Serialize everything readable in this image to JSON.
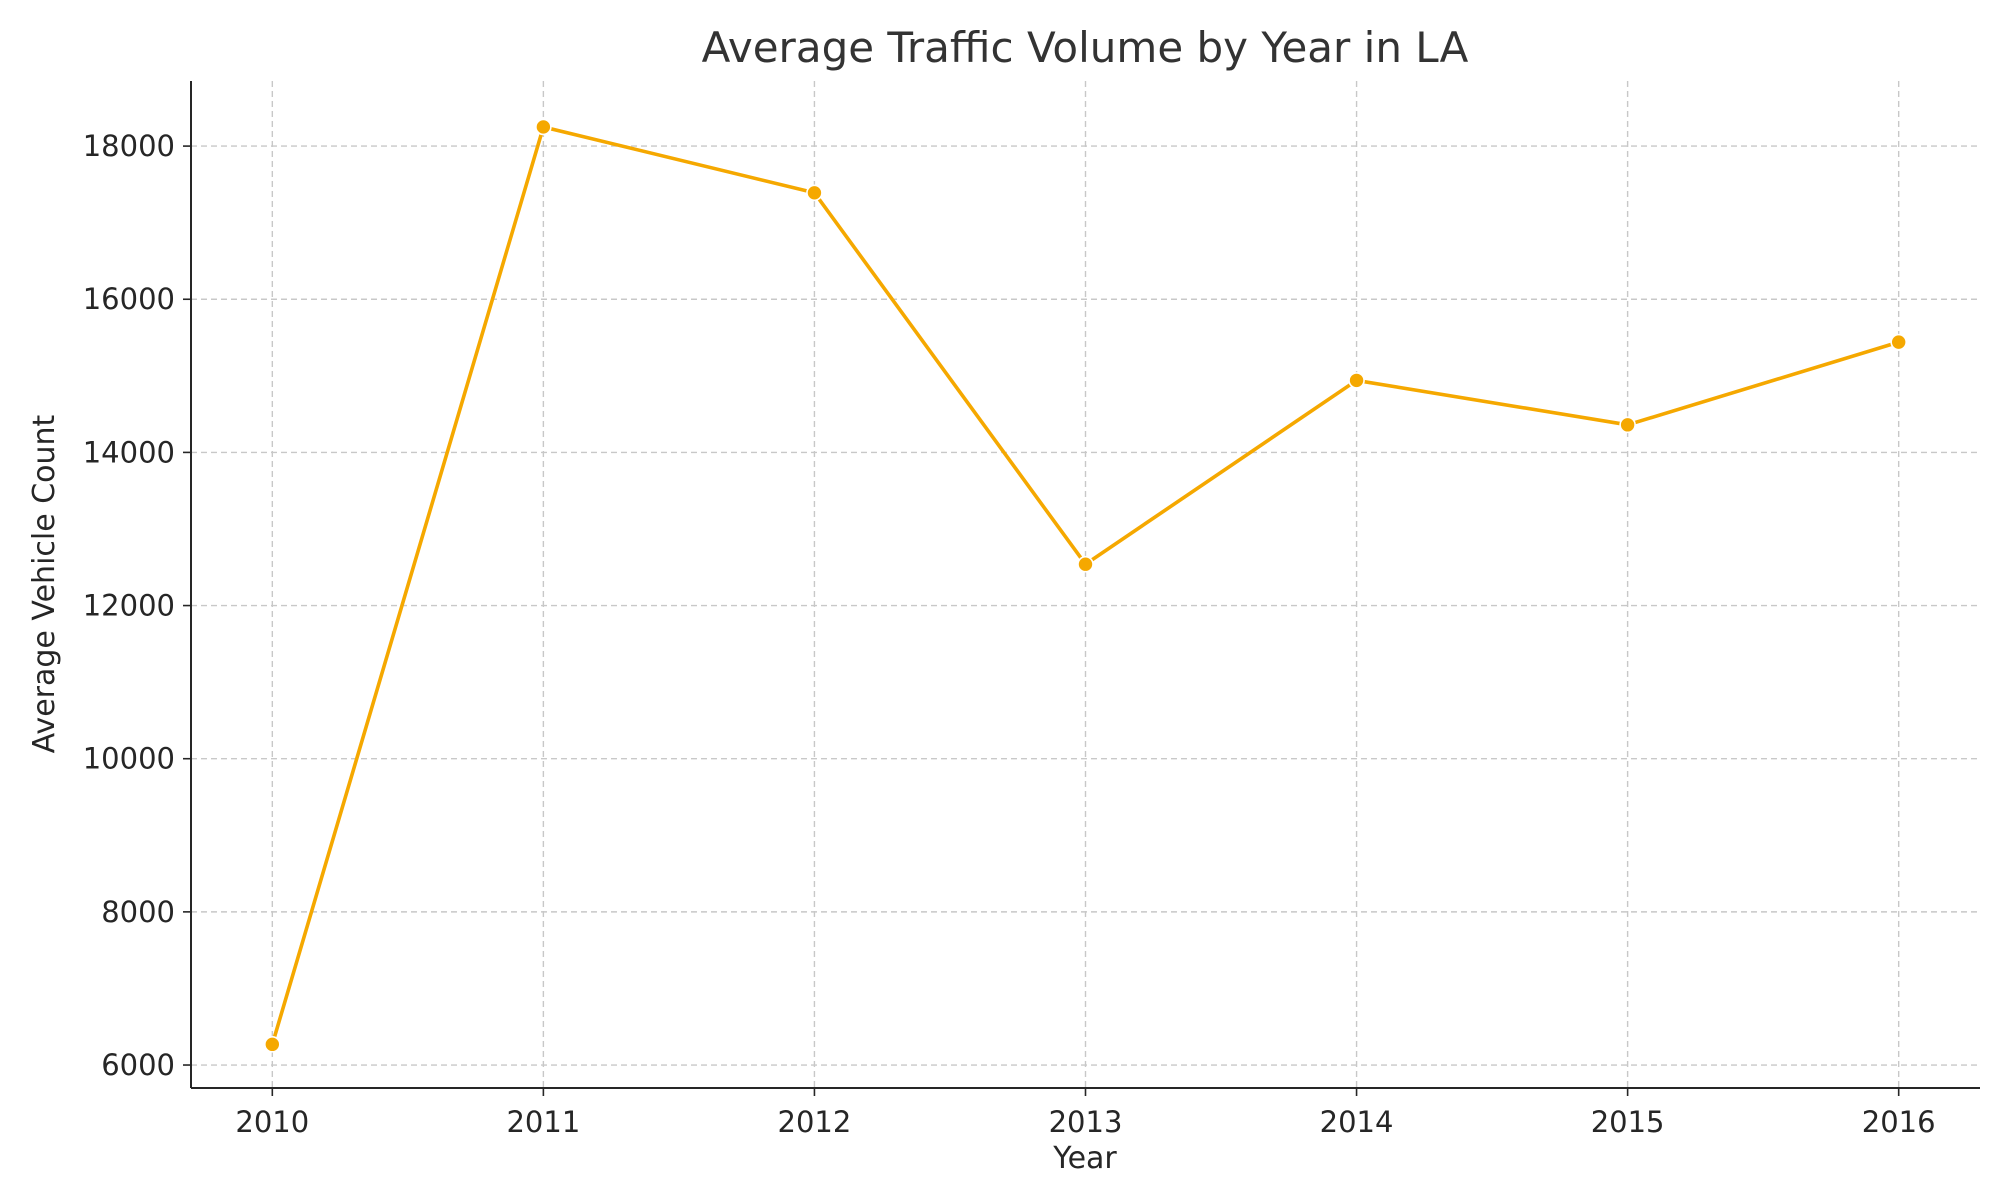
{
  "chart_data": {
    "type": "line",
    "title": "Average Traffic Volume by Year in LA",
    "xlabel": "Year",
    "ylabel": "Average Vehicle Count",
    "x": [
      "2010",
      "2011",
      "2012",
      "2013",
      "2014",
      "2015",
      "2016"
    ],
    "series": [
      {
        "values": [
          6270,
          18250,
          17390,
          12540,
          14940,
          14360,
          15440
        ],
        "color": "#f5a800",
        "marker": "circle"
      }
    ],
    "xlim": [
      2009.7,
      2016.3
    ],
    "ylim": [
      5700,
      18850
    ],
    "yticks": [
      6000,
      8000,
      10000,
      12000,
      14000,
      16000,
      18000
    ],
    "xticks": [
      "2010",
      "2011",
      "2012",
      "2013",
      "2014",
      "2015",
      "2016"
    ],
    "grid": true,
    "grid_style": "dashed",
    "legend": "none"
  }
}
